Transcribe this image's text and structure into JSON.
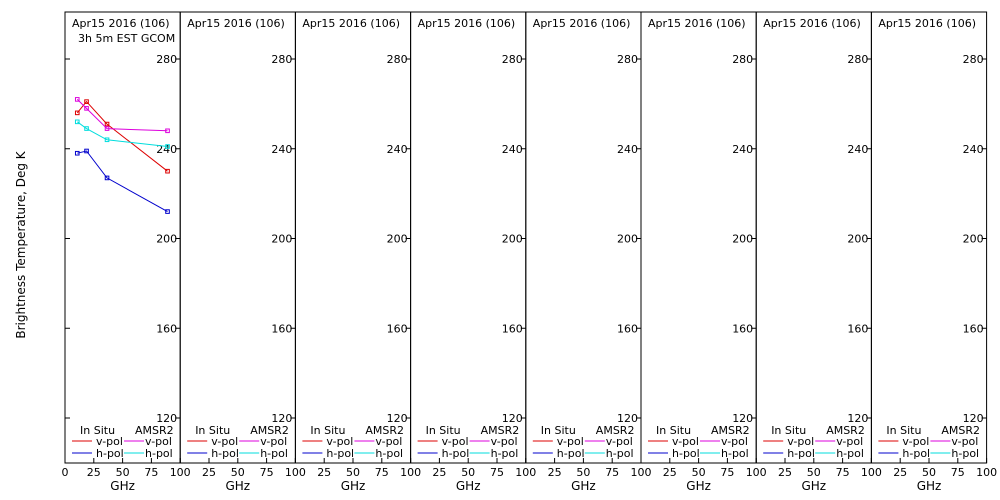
{
  "chart_data": {
    "type": "line",
    "ylabel": "Brightness Temperature, Deg K",
    "xlabel": "GHz",
    "xlim": [
      0,
      100
    ],
    "ylim": [
      107,
      295
    ],
    "xticks": [
      0,
      25,
      50,
      75,
      100
    ],
    "yticks": [
      120,
      160,
      200,
      240,
      280
    ],
    "grid": false,
    "legend": {
      "placement": "bottom",
      "headers": [
        "In Situ",
        "AMSR2"
      ],
      "labels": [
        "v-pol",
        "h-pol"
      ]
    },
    "colors": {
      "insitu_v": "#dd0000",
      "insitu_h": "#0000cc",
      "amsr2_v": "#dd00dd",
      "amsr2_h": "#00dddd"
    },
    "panels": [
      {
        "title": "Apr15 2016 (106)",
        "subtitle": "3h 5m EST GCOM",
        "series": [
          {
            "group": "In Situ",
            "pol": "v-pol",
            "x": [
              10.65,
              18.7,
              36.5,
              89.0
            ],
            "y": [
              256,
              261,
              251,
              230
            ]
          },
          {
            "group": "In Situ",
            "pol": "h-pol",
            "x": [
              10.65,
              18.7,
              36.5,
              89.0
            ],
            "y": [
              238,
              239,
              227,
              212
            ]
          },
          {
            "group": "AMSR2",
            "pol": "v-pol",
            "x": [
              10.65,
              18.7,
              36.5,
              89.0
            ],
            "y": [
              262,
              258,
              249,
              248
            ]
          },
          {
            "group": "AMSR2",
            "pol": "h-pol",
            "x": [
              10.65,
              18.7,
              36.5,
              89.0
            ],
            "y": [
              252,
              249,
              244,
              241
            ]
          }
        ]
      },
      {
        "title": "Apr15 2016 (106)",
        "series": []
      },
      {
        "title": "Apr15 2016 (106)",
        "series": []
      },
      {
        "title": "Apr15 2016 (106)",
        "series": []
      },
      {
        "title": "Apr15 2016 (106)",
        "series": []
      },
      {
        "title": "Apr15 2016 (106)",
        "series": []
      },
      {
        "title": "Apr15 2016 (106)",
        "series": []
      },
      {
        "title": "Apr15 2016 (106)",
        "series": []
      }
    ]
  }
}
